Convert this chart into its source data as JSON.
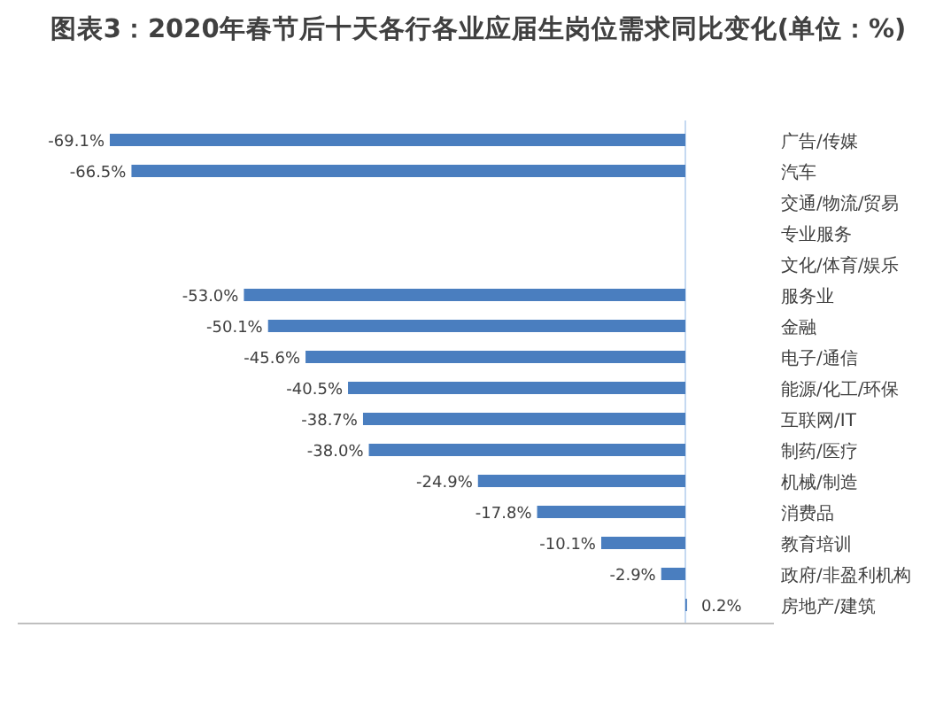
{
  "chart_data": {
    "type": "bar",
    "orientation": "horizontal",
    "title": "图表3：2020年春节后十天各行各业应届生岗位需求同比变化(单位：%)",
    "categories": [
      "广告/传媒",
      "汽车",
      "交通/物流/贸易",
      "专业服务",
      "文化/体育/娱乐",
      "服务业",
      "金融",
      "电子/通信",
      "能源/化工/环保",
      "互联网/IT",
      "制药/医疗",
      "机械/制造",
      "消费品",
      "教育培训",
      "政府/非盈利机构",
      "房地产/建筑"
    ],
    "values": [
      -69.1,
      -66.5,
      null,
      null,
      null,
      -53.0,
      -50.1,
      -45.6,
      -40.5,
      -38.7,
      -38.0,
      -24.9,
      -17.8,
      -10.1,
      -2.9,
      0.2
    ],
    "value_labels": [
      "-69.1%",
      "-66.5%",
      null,
      null,
      null,
      "-53.0%",
      "-50.1%",
      "-45.6%",
      "-40.5%",
      "-38.7%",
      "-38.0%",
      "-24.9%",
      "-17.8%",
      "-10.1%",
      "-2.9%",
      "0.2%"
    ],
    "color": "#4a7ebf"
  }
}
